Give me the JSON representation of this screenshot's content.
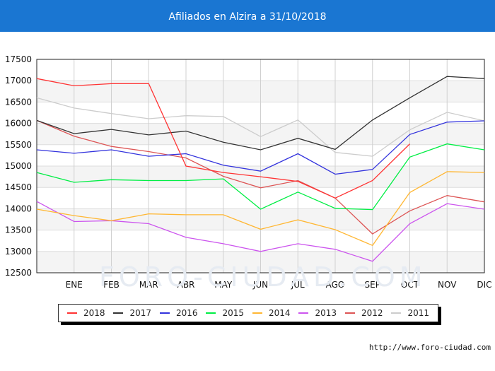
{
  "header": {
    "title": "Afiliados en Alzira a 31/10/2018"
  },
  "watermark": "FORO-CIUDAD.COM",
  "footer": {
    "url": "http://www.foro-ciudad.com"
  },
  "chart_data": {
    "type": "line",
    "title": "Afiliados en Alzira a 31/10/2018",
    "xlabel": "",
    "ylabel": "",
    "categories": [
      "",
      "ENE",
      "FEB",
      "MAR",
      "ABR",
      "MAY",
      "JUN",
      "JUL",
      "AGO",
      "SEP",
      "OCT",
      "NOV",
      "DIC"
    ],
    "ylim": [
      12500,
      17500
    ],
    "yticks": [
      12500,
      13000,
      13500,
      14000,
      14500,
      15000,
      15500,
      16000,
      16500,
      17000,
      17500
    ],
    "grid": true,
    "legend_position": "bottom",
    "series": [
      {
        "name": "2018",
        "color": "#ff3333",
        "values": [
          17050,
          16880,
          16930,
          16930,
          15000,
          14850,
          14750,
          14640,
          14250,
          14660,
          15520,
          null,
          null
        ]
      },
      {
        "name": "2017",
        "color": "#333333",
        "values": [
          16070,
          15760,
          15860,
          15730,
          15820,
          15560,
          15380,
          15650,
          15390,
          16080,
          16600,
          17100,
          17050
        ]
      },
      {
        "name": "2016",
        "color": "#3333dd",
        "values": [
          15380,
          15300,
          15380,
          15230,
          15290,
          15020,
          14880,
          15290,
          14810,
          14920,
          15740,
          16030,
          16060
        ]
      },
      {
        "name": "2015",
        "color": "#00ee44",
        "values": [
          14850,
          14620,
          14680,
          14660,
          14660,
          14700,
          13990,
          14390,
          14010,
          13980,
          15210,
          15520,
          15380
        ]
      },
      {
        "name": "2014",
        "color": "#ffb733",
        "values": [
          13990,
          13840,
          13720,
          13880,
          13860,
          13860,
          13520,
          13740,
          13510,
          13140,
          14380,
          14870,
          14850
        ]
      },
      {
        "name": "2013",
        "color": "#cc55ee",
        "values": [
          14170,
          13700,
          13720,
          13650,
          13330,
          13180,
          13000,
          13180,
          13050,
          12770,
          13650,
          14120,
          13990
        ]
      },
      {
        "name": "2012",
        "color": "#dd5555",
        "values": [
          16070,
          15700,
          15460,
          15340,
          15190,
          14760,
          14490,
          14660,
          14250,
          13410,
          13950,
          14310,
          14160
        ]
      },
      {
        "name": "2011",
        "color": "#cccccc",
        "values": [
          16600,
          16360,
          16230,
          16110,
          16180,
          16160,
          15690,
          16080,
          15320,
          15230,
          15850,
          16260,
          16060
        ]
      }
    ]
  }
}
